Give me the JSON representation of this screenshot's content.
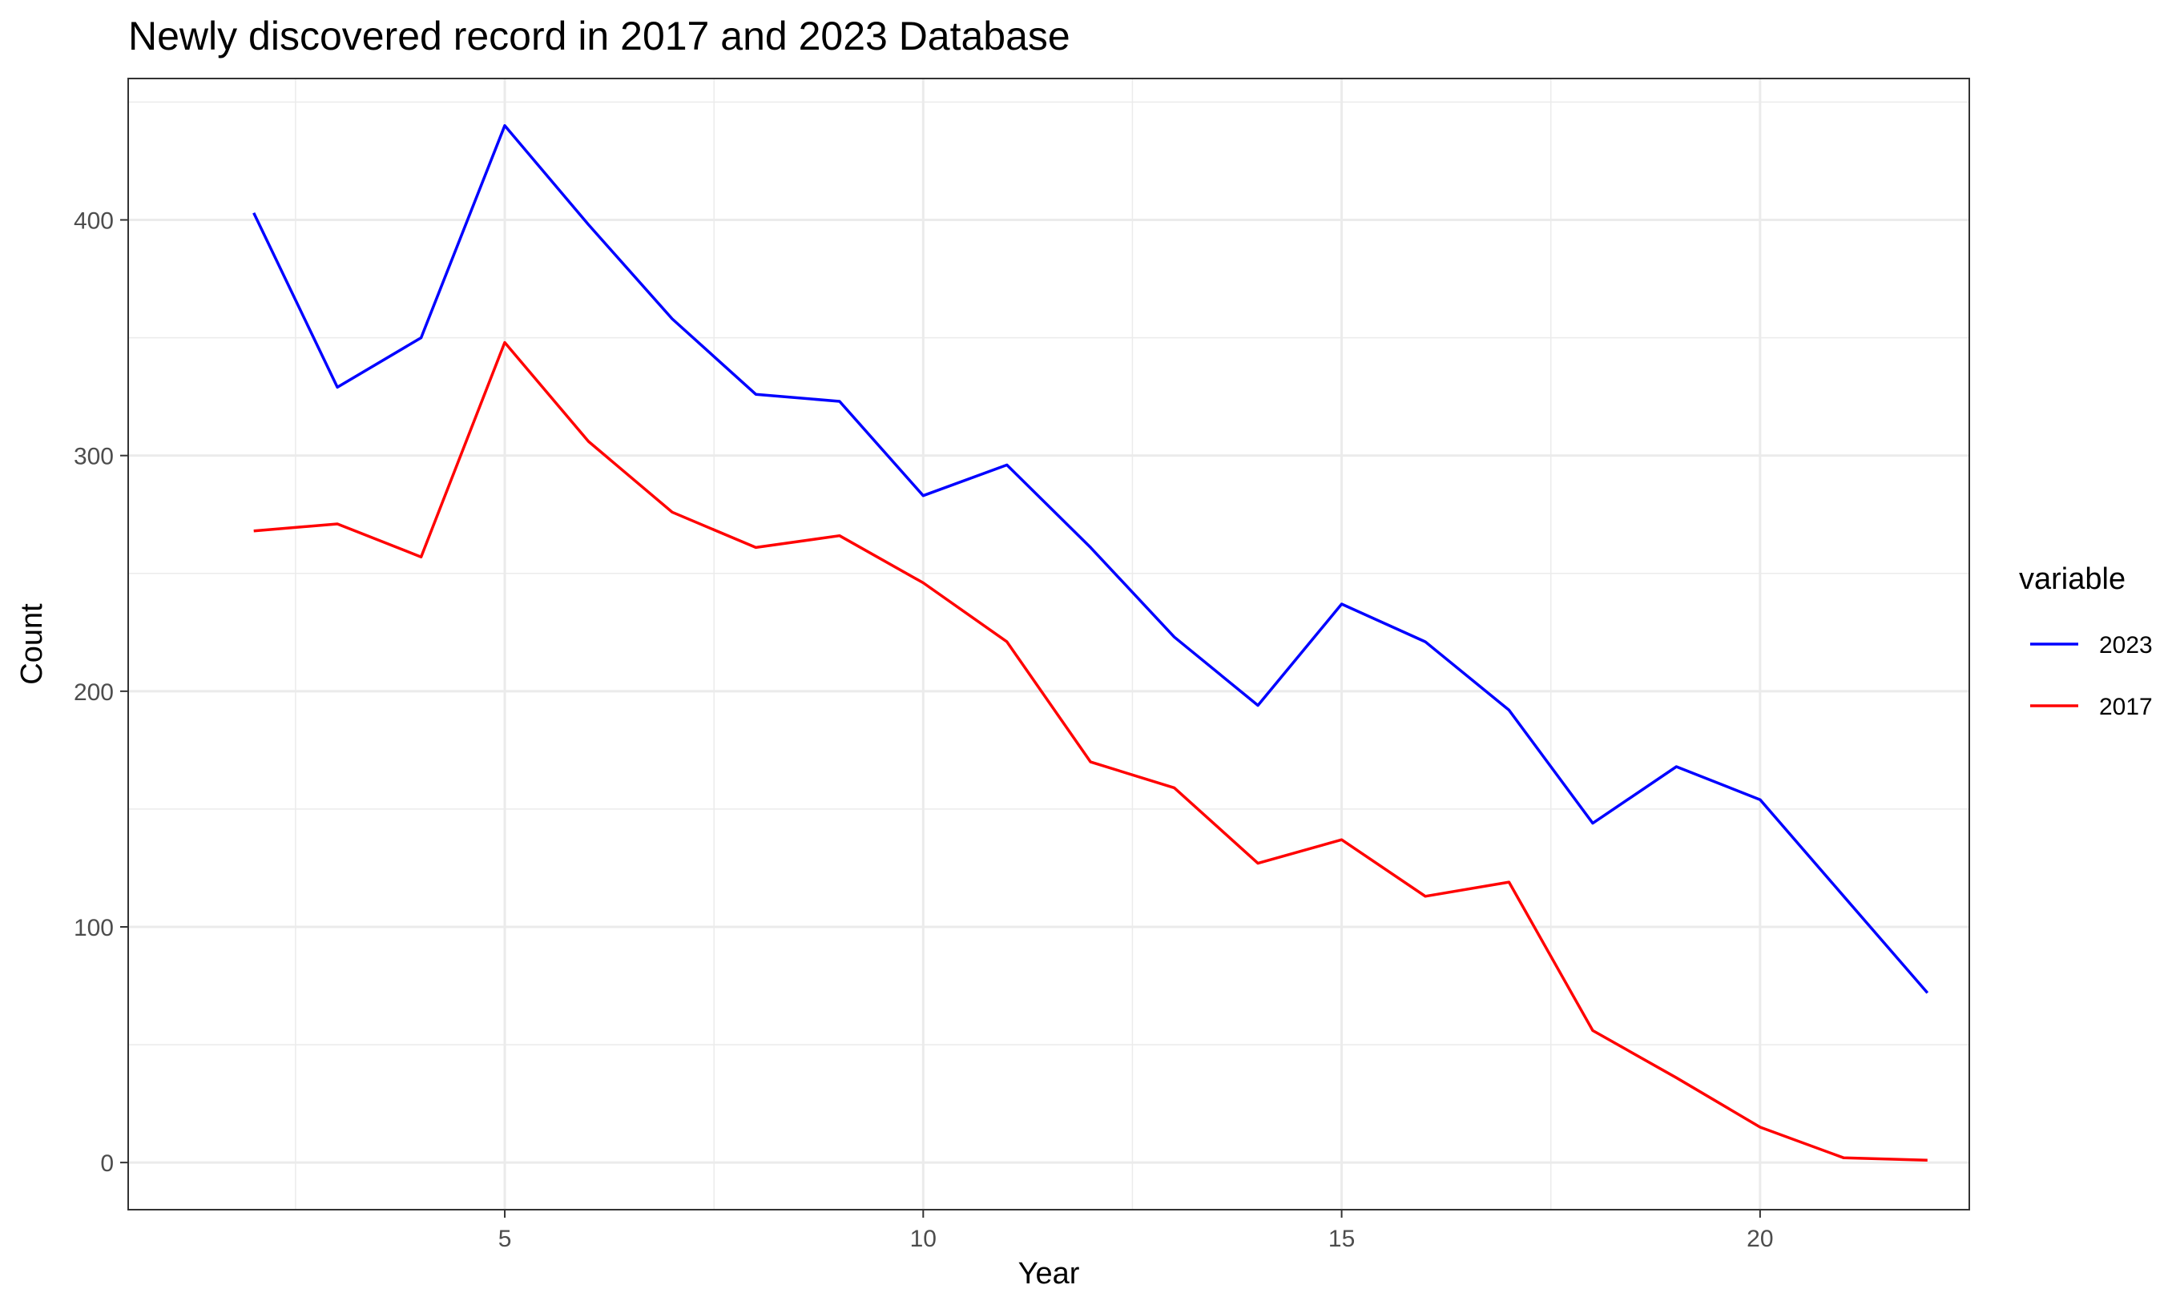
{
  "chart_data": {
    "type": "line",
    "title": "Newly discovered record in 2017 and 2023 Database",
    "xlabel": "Year",
    "ylabel": "Count",
    "x": [
      2,
      3,
      4,
      5,
      6,
      7,
      8,
      9,
      10,
      11,
      12,
      13,
      14,
      15,
      16,
      17,
      18,
      19,
      20,
      21,
      22
    ],
    "xlim": [
      0.5,
      22.5
    ],
    "ylim": [
      -20,
      460
    ],
    "x_ticks": [
      5,
      10,
      15,
      20
    ],
    "y_ticks": [
      0,
      100,
      200,
      300,
      400
    ],
    "x_tick_labels": [
      "5",
      "10",
      "15",
      "20"
    ],
    "y_tick_labels": [
      "0",
      "100",
      "200",
      "300",
      "400"
    ],
    "grid": true,
    "legend": {
      "title": "variable",
      "position": "right",
      "entries": [
        "2023",
        "2017"
      ]
    },
    "series": [
      {
        "name": "2023",
        "color": "#0000ff",
        "values": [
          403,
          329,
          350,
          440,
          398,
          358,
          326,
          323,
          283,
          296,
          261,
          223,
          194,
          237,
          221,
          192,
          144,
          168,
          154,
          113,
          72
        ]
      },
      {
        "name": "2017",
        "color": "#ff0000",
        "values": [
          268,
          271,
          257,
          348,
          306,
          276,
          261,
          266,
          246,
          221,
          170,
          159,
          127,
          137,
          113,
          119,
          56,
          36,
          15,
          2,
          1
        ]
      }
    ]
  }
}
